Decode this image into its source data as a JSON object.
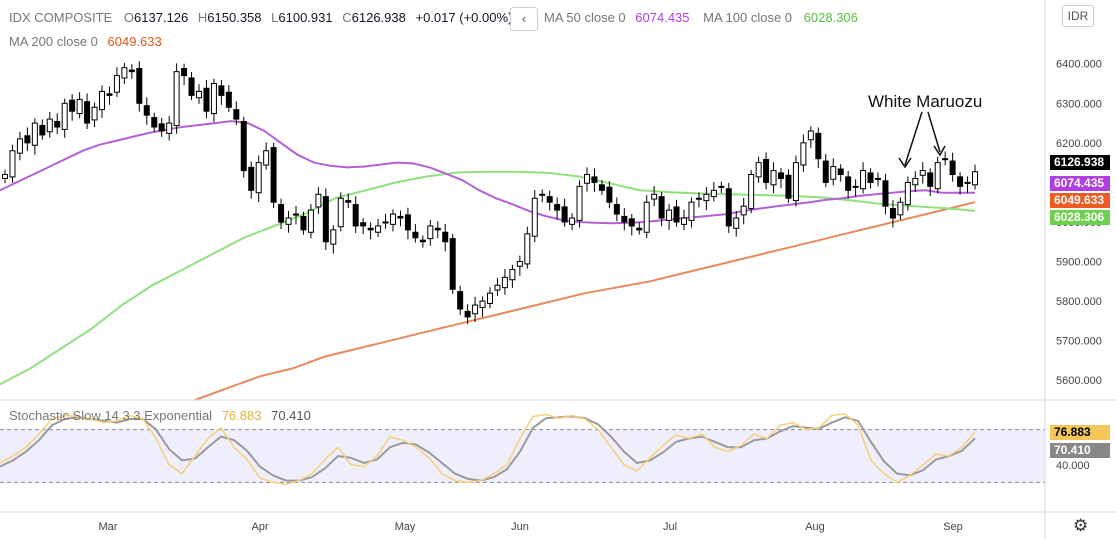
{
  "header": {
    "symbol": "IDX COMPOSITE",
    "open_label": "O",
    "open": "6137.126",
    "high_label": "H",
    "high": "6150.358",
    "low_label": "L",
    "low": "6100.931",
    "close_label": "C",
    "close": "6126.938",
    "change": "+0.017 (+0.00%)",
    "collapse_icon": "chevron-left-icon",
    "ma50_label": "MA 50 close 0",
    "ma50_value": "6074.435",
    "ma100_label": "MA 100 close 0",
    "ma100_value": "6028.306",
    "ma200_label": "MA 200 close 0",
    "ma200_value": "6049.633",
    "currency": "IDR",
    "settings_icon": "gear-icon"
  },
  "indicator": {
    "label": "Stochastic Slow 14 3 3 Exponential",
    "k_value": "76.883",
    "d_value": "70.410"
  },
  "colors": {
    "ma50": "#b45fd6",
    "ma100": "#8fe07f",
    "ma200": "#e8895f",
    "stoch_k": "#f7cf7a",
    "stoch_d": "#9a9a9a",
    "stoch_band": "#efeefc",
    "candle": "#000000",
    "last_price": "#000000",
    "tag_ma50": "#b03ee0",
    "tag_ma200": "#ee5b23",
    "tag_ma100": "#6fcf4f",
    "tag_k": "#f5c75b",
    "tag_d": "#888888"
  },
  "annotation": {
    "text": "White Maruozu"
  },
  "chart_data": [
    {
      "type": "candlestick",
      "x_ticks": [
        "Mar",
        "Apr",
        "May",
        "Jun",
        "Jul",
        "Aug",
        "Sep"
      ],
      "y_ticks": [
        "6400.000",
        "6300.000",
        "6200.000",
        "6100.000",
        "6000.000",
        "5900.000",
        "5800.000",
        "5700.000",
        "5600.000"
      ],
      "ylim": [
        5550,
        6460
      ],
      "last_price": "6126.938",
      "closes": [
        6120,
        6180,
        6210,
        6200,
        6250,
        6220,
        6260,
        6240,
        6300,
        6280,
        6310,
        6250,
        6290,
        6330,
        6320,
        6370,
        6390,
        6380,
        6300,
        6270,
        6240,
        6230,
        6250,
        6380,
        6370,
        6320,
        6330,
        6280,
        6350,
        6320,
        6290,
        6260,
        6130,
        6080,
        6150,
        6180,
        6050,
        6000,
        6010,
        6020,
        5980,
        6030,
        6070,
        5950,
        5980,
        6060,
        6050,
        5990,
        5990,
        5980,
        5990,
        6000,
        6020,
        6010,
        5980,
        5960,
        5950,
        5990,
        5980,
        5950,
        5830,
        5780,
        5760,
        5790,
        5800,
        5820,
        5840,
        5860,
        5880,
        5900,
        5970,
        6060,
        6070,
        6050,
        6030,
        6000,
        6010,
        6090,
        6120,
        6100,
        6080,
        6050,
        6020,
        6000,
        5990,
        5980,
        6050,
        6070,
        6010,
        6030,
        6000,
        6010,
        6050,
        6060,
        6070,
        6080,
        6090,
        5990,
        6010,
        6040,
        6120,
        6150,
        6100,
        6130,
        6110,
        6060,
        6150,
        6200,
        6230,
        6160,
        6100,
        6140,
        6120,
        6080,
        6090,
        6130,
        6100,
        6110,
        6040,
        6010,
        6050,
        6100,
        6110,
        6130,
        6090,
        6150,
        6160,
        6120,
        6090,
        6100,
        6127
      ],
      "ma50": [
        6080,
        6100,
        6120,
        6140,
        6160,
        6180,
        6195,
        6205,
        6215,
        6225,
        6233,
        6240,
        6245,
        6250,
        6255,
        6250,
        6230,
        6200,
        6170,
        6150,
        6142,
        6138,
        6140,
        6145,
        6150,
        6148,
        6138,
        6122,
        6105,
        6080,
        6060,
        6045,
        6028,
        6015,
        6005,
        6000,
        5998,
        5997,
        5998,
        6000,
        6004,
        6008,
        6012,
        6016,
        6020,
        6028,
        6034,
        6040,
        6045,
        6050,
        6056,
        6060,
        6066,
        6070,
        6074,
        6078,
        6080,
        6074,
        6074,
        6074
      ],
      "ma100": [
        5590,
        5630,
        5680,
        5730,
        5790,
        5840,
        5880,
        5920,
        5960,
        5990,
        6020,
        6060,
        6080,
        6100,
        6115,
        6125,
        6127,
        6127,
        6124,
        6115,
        6098,
        6080,
        6075,
        6072,
        6070,
        6068,
        6066,
        6062,
        6054,
        6045,
        6040,
        6035,
        6028
      ],
      "ma200": [
        5550,
        5580,
        5610,
        5630,
        5660,
        5680,
        5700,
        5720,
        5740,
        5760,
        5780,
        5800,
        5820,
        5835,
        5850,
        5870,
        5890,
        5910,
        5930,
        5950,
        5970,
        5990,
        6010,
        6030,
        6050
      ]
    },
    {
      "type": "line",
      "name": "stochastic",
      "y_ticks": [
        "40.000"
      ],
      "ylim": [
        0,
        100
      ],
      "k": [
        42,
        50,
        60,
        75,
        92,
        96,
        95,
        92,
        88,
        90,
        96,
        92,
        70,
        40,
        30,
        50,
        70,
        82,
        60,
        46,
        25,
        20,
        18,
        22,
        30,
        46,
        60,
        40,
        38,
        50,
        72,
        68,
        60,
        48,
        30,
        22,
        20,
        22,
        30,
        40,
        70,
        95,
        97,
        93,
        96,
        92,
        80,
        60,
        40,
        33,
        48,
        62,
        74,
        70,
        75,
        60,
        55,
        62,
        75,
        70,
        85,
        88,
        80,
        82,
        96,
        98,
        85,
        45,
        30,
        20,
        28,
        40,
        52,
        50,
        60,
        77
      ],
      "d": [
        38,
        45,
        55,
        68,
        85,
        92,
        94,
        92,
        90,
        88,
        92,
        92,
        80,
        58,
        45,
        47,
        60,
        72,
        68,
        56,
        38,
        28,
        22,
        22,
        26,
        36,
        50,
        48,
        42,
        46,
        60,
        65,
        63,
        54,
        42,
        30,
        24,
        22,
        26,
        35,
        55,
        82,
        93,
        94,
        95,
        93,
        86,
        72,
        55,
        42,
        45,
        54,
        66,
        70,
        72,
        66,
        60,
        60,
        68,
        70,
        78,
        84,
        82,
        81,
        88,
        94,
        90,
        66,
        44,
        30,
        28,
        34,
        46,
        50,
        56,
        70
      ]
    }
  ]
}
